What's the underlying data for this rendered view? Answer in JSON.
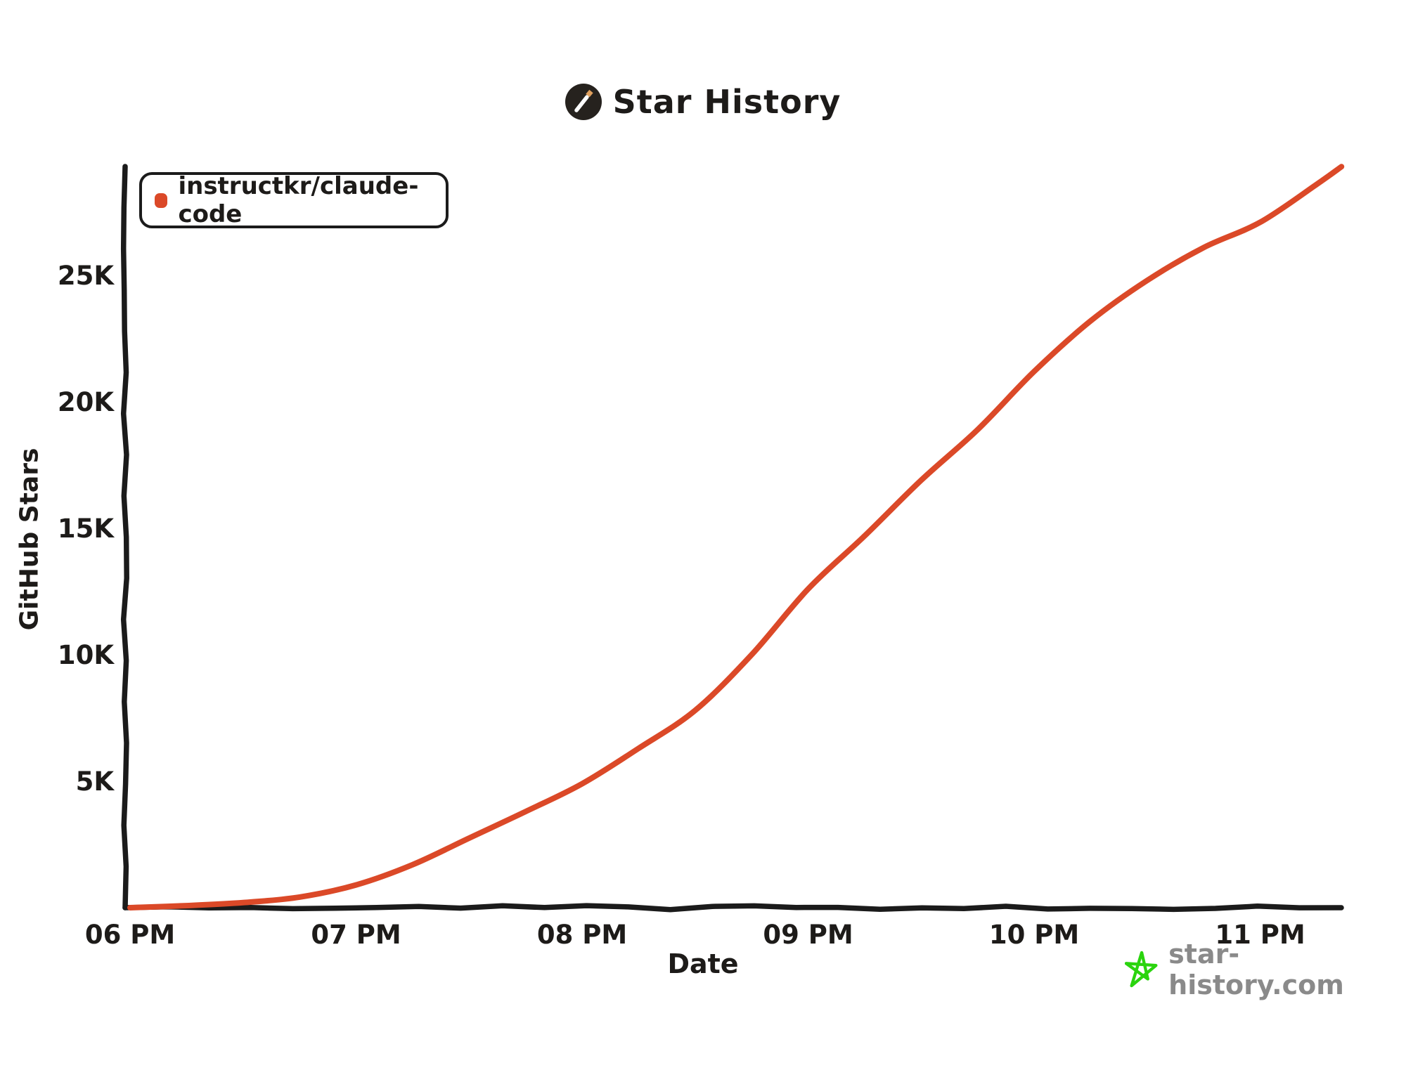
{
  "header": {
    "title": "Star History"
  },
  "legend": {
    "items": [
      {
        "label": "instructkr/claude-code",
        "color": "#DB4928"
      }
    ]
  },
  "watermark": {
    "text": "star-history.com",
    "star_color": "#2AD40E",
    "text_color": "#8A8A8A"
  },
  "colors": {
    "axis": "#1b1b1b",
    "tick_text": "#1d1b19",
    "line": "#DB4928",
    "logo_bg": "#26221E",
    "logo_wand": "#FFFFFF",
    "logo_tip": "#DFA05E"
  },
  "chart_data": {
    "type": "line",
    "title": "Star History",
    "xlabel": "Date",
    "ylabel": "GitHub Stars",
    "grid": false,
    "legend_position": "top-left",
    "x_axis_unit": "hour_of_day_24h",
    "x_range_hours": [
      18.0,
      23.36
    ],
    "ylim": [
      0,
      29500
    ],
    "x_ticks": [
      {
        "label": "06 PM",
        "hour": 18
      },
      {
        "label": "07 PM",
        "hour": 19
      },
      {
        "label": "08 PM",
        "hour": 20
      },
      {
        "label": "09 PM",
        "hour": 21
      },
      {
        "label": "10 PM",
        "hour": 22
      },
      {
        "label": "11 PM",
        "hour": 23
      }
    ],
    "y_ticks": [
      {
        "label": "5K",
        "value": 5000
      },
      {
        "label": "10K",
        "value": 10000
      },
      {
        "label": "15K",
        "value": 15000
      },
      {
        "label": "20K",
        "value": 20000
      },
      {
        "label": "25K",
        "value": 25000
      }
    ],
    "series": [
      {
        "name": "instructkr/claude-code",
        "color": "#DB4928",
        "points": [
          [
            18.0,
            0
          ],
          [
            18.25,
            80
          ],
          [
            18.5,
            200
          ],
          [
            18.75,
            420
          ],
          [
            19.0,
            900
          ],
          [
            19.25,
            1700
          ],
          [
            19.5,
            2750
          ],
          [
            19.75,
            3800
          ],
          [
            20.0,
            4900
          ],
          [
            20.25,
            6300
          ],
          [
            20.5,
            7800
          ],
          [
            20.75,
            10000
          ],
          [
            21.0,
            12600
          ],
          [
            21.25,
            14700
          ],
          [
            21.5,
            16900
          ],
          [
            21.75,
            18900
          ],
          [
            22.0,
            21200
          ],
          [
            22.25,
            23200
          ],
          [
            22.5,
            24800
          ],
          [
            22.75,
            26100
          ],
          [
            23.0,
            27100
          ],
          [
            23.25,
            28600
          ],
          [
            23.36,
            29300
          ]
        ]
      }
    ]
  }
}
